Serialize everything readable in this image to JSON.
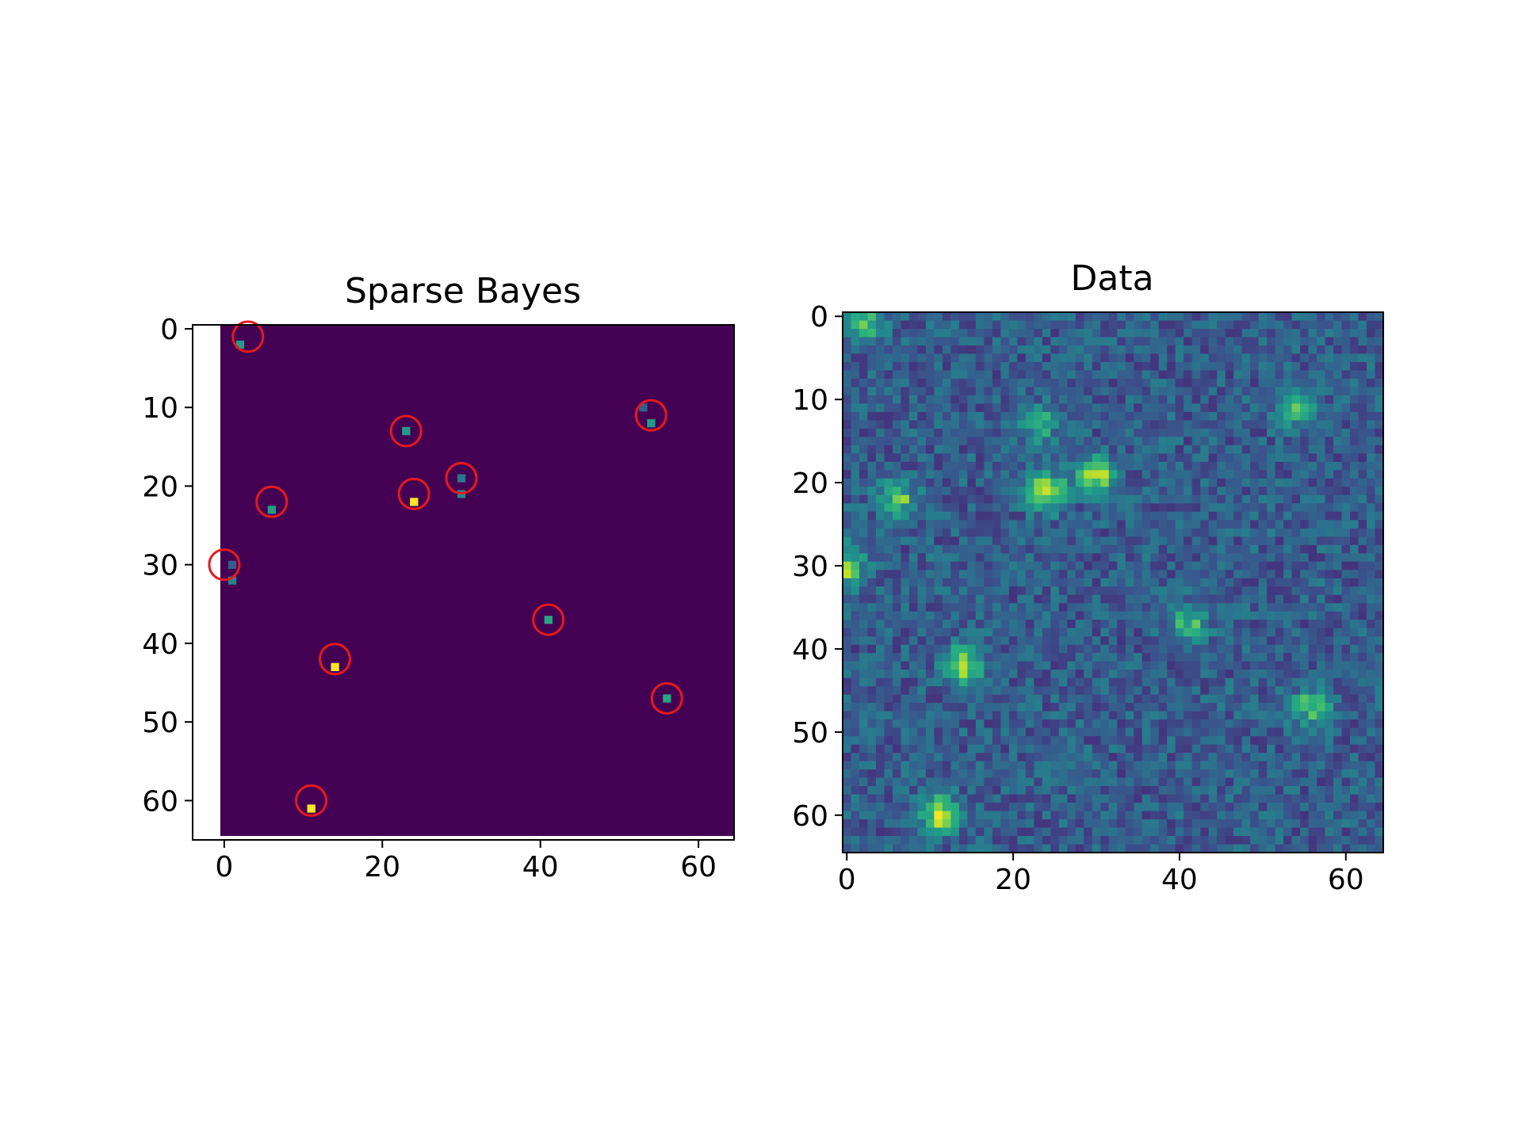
{
  "colors": {
    "background": "#ffffff",
    "axis": "#000000",
    "circle": "#e41a1c",
    "cmap_low": "#440154",
    "cmap_high": "#fde725"
  },
  "chart_data": [
    {
      "type": "heatmap",
      "title": "Sparse Bayes",
      "xlabel": "",
      "ylabel": "",
      "colormap": "viridis",
      "grid": false,
      "xlim": [
        -4,
        64.5
      ],
      "ylim": [
        65,
        -0.5
      ],
      "xticks": [
        "0",
        "20",
        "40",
        "60"
      ],
      "yticks": [
        "0",
        "10",
        "20",
        "30",
        "40",
        "50",
        "60"
      ],
      "background_value": 0,
      "nonzero_pixels": [
        {
          "x": 2,
          "y": 2,
          "value": 0.55
        },
        {
          "x": 23,
          "y": 13,
          "value": 0.55
        },
        {
          "x": 54,
          "y": 12,
          "value": 0.55
        },
        {
          "x": 53,
          "y": 10,
          "value": 0.3
        },
        {
          "x": 30,
          "y": 19,
          "value": 0.4
        },
        {
          "x": 30,
          "y": 21,
          "value": 0.45
        },
        {
          "x": 24,
          "y": 22,
          "value": 1.0
        },
        {
          "x": 6,
          "y": 23,
          "value": 0.55
        },
        {
          "x": 1,
          "y": 32,
          "value": 0.45
        },
        {
          "x": 1,
          "y": 30,
          "value": 0.3
        },
        {
          "x": 41,
          "y": 37,
          "value": 0.6
        },
        {
          "x": 14,
          "y": 43,
          "value": 1.0
        },
        {
          "x": 56,
          "y": 47,
          "value": 0.6
        },
        {
          "x": 11,
          "y": 61,
          "value": 1.0
        }
      ],
      "circles": [
        {
          "x": 3,
          "y": 1
        },
        {
          "x": 23,
          "y": 13
        },
        {
          "x": 54,
          "y": 11
        },
        {
          "x": 30,
          "y": 19
        },
        {
          "x": 24,
          "y": 21
        },
        {
          "x": 6,
          "y": 22
        },
        {
          "x": 0,
          "y": 30
        },
        {
          "x": 41,
          "y": 37
        },
        {
          "x": 14,
          "y": 42
        },
        {
          "x": 56,
          "y": 47
        },
        {
          "x": 11,
          "y": 60
        }
      ]
    },
    {
      "type": "heatmap",
      "title": "Data",
      "xlabel": "",
      "ylabel": "",
      "colormap": "viridis",
      "grid": false,
      "xlim": [
        -0.5,
        64.5
      ],
      "ylim": [
        64.5,
        -0.5
      ],
      "xticks": [
        "0",
        "20",
        "40",
        "60"
      ],
      "yticks": [
        "0",
        "10",
        "20",
        "30",
        "40",
        "50",
        "60"
      ],
      "grid_size": [
        65,
        65
      ],
      "noise_level": 0.3,
      "noise_spread": 0.13,
      "blobs": [
        {
          "x": 2,
          "y": 1,
          "amplitude": 0.45
        },
        {
          "x": 23,
          "y": 13,
          "amplitude": 0.35
        },
        {
          "x": 54,
          "y": 11,
          "amplitude": 0.4
        },
        {
          "x": 30,
          "y": 19,
          "amplitude": 0.6
        },
        {
          "x": 24,
          "y": 21,
          "amplitude": 0.65
        },
        {
          "x": 6,
          "y": 22,
          "amplitude": 0.5
        },
        {
          "x": 0,
          "y": 30,
          "amplitude": 0.55
        },
        {
          "x": 41,
          "y": 37,
          "amplitude": 0.4
        },
        {
          "x": 14,
          "y": 42,
          "amplitude": 0.55
        },
        {
          "x": 56,
          "y": 47,
          "amplitude": 0.45
        },
        {
          "x": 11,
          "y": 60,
          "amplitude": 0.7
        }
      ]
    }
  ]
}
